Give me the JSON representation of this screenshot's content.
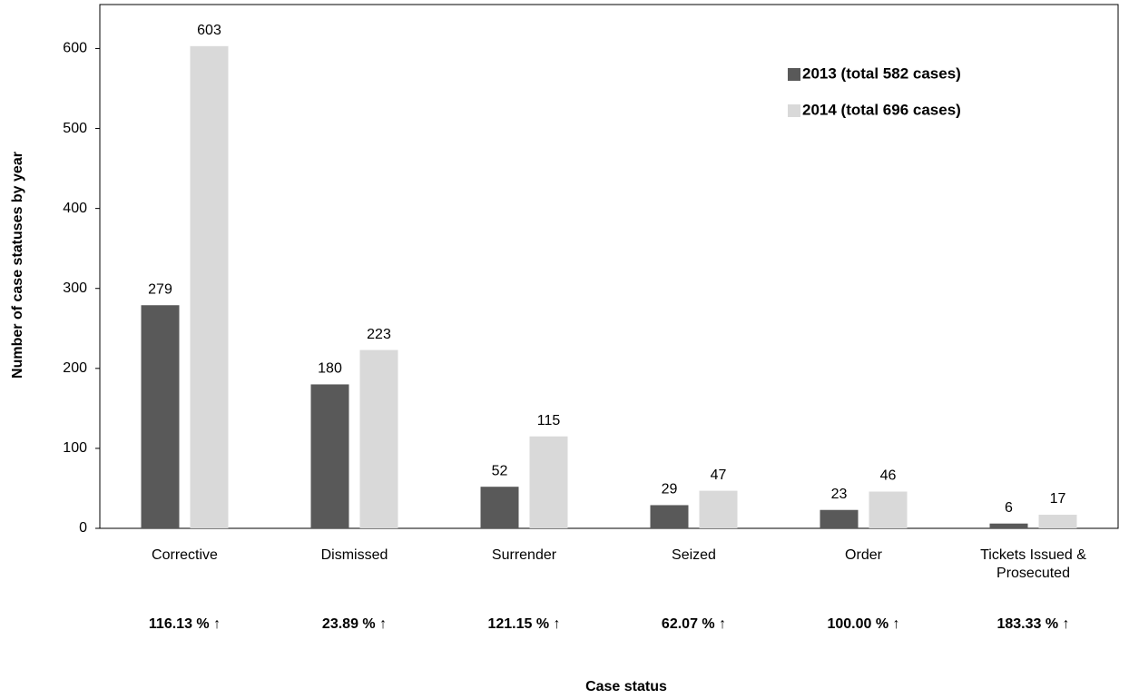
{
  "chart_data": {
    "type": "bar",
    "x_label": "Case status",
    "y_label": "Number of case statuses  by year",
    "categories": [
      "Corrective",
      "Dismissed",
      "Surrender",
      "Seized",
      "Order",
      "Tickets Issued & Prosecuted"
    ],
    "series": [
      {
        "name": "2013 (total 582 cases)",
        "color": "#595959",
        "values": [
          279,
          180,
          52,
          29,
          23,
          6
        ]
      },
      {
        "name": "2014 (total 696 cases)",
        "color": "#d9d9d9",
        "values": [
          603,
          223,
          115,
          47,
          46,
          17
        ]
      }
    ],
    "change_labels": [
      "116.13 % ↑",
      "23.89 % ↑",
      "121.15 % ↑",
      "62.07 % ↑",
      "100.00 % ↑",
      "183.33 % ↑"
    ],
    "ylim": [
      0,
      655
    ],
    "yticks": [
      0,
      100,
      200,
      300,
      400,
      500,
      600
    ],
    "grid": false,
    "legend": "upper right"
  }
}
